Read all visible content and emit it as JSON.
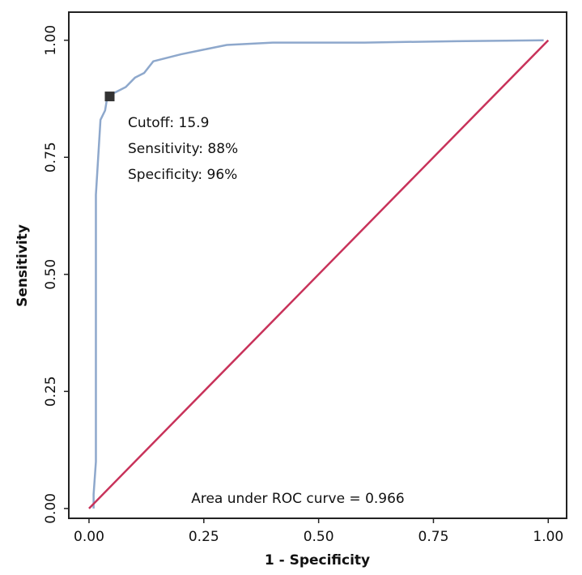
{
  "chart_data": {
    "type": "line",
    "xlabel": "1 - Specificity",
    "ylabel": "Sensitivity",
    "xlim": [
      -0.044,
      1.04
    ],
    "ylim": [
      -0.021,
      1.06
    ],
    "xticks": [
      {
        "value": 0,
        "label": "0.00"
      },
      {
        "value": 0.25,
        "label": "0.25"
      },
      {
        "value": 0.5,
        "label": "0.50"
      },
      {
        "value": 0.75,
        "label": "0.75"
      },
      {
        "value": 1,
        "label": "1.00"
      }
    ],
    "yticks": [
      {
        "value": 0,
        "label": "0.00"
      },
      {
        "value": 0.25,
        "label": "0.25"
      },
      {
        "value": 0.5,
        "label": "0.50"
      },
      {
        "value": 0.75,
        "label": "0.75"
      },
      {
        "value": 1,
        "label": "1.00"
      }
    ],
    "series": [
      {
        "color": "#8ea8cc",
        "x": [
          0.01,
          0.01,
          0.015,
          0.015,
          0.015,
          0.02,
          0.025,
          0.035,
          0.04,
          0.06,
          0.08,
          0.1,
          0.12,
          0.14,
          0.16,
          0.2,
          0.25,
          0.3,
          0.4,
          0.6,
          0.8,
          0.99
        ],
        "values": [
          0,
          0.03,
          0.1,
          0.5,
          0.67,
          0.75,
          0.83,
          0.85,
          0.88,
          0.89,
          0.9,
          0.92,
          0.93,
          0.955,
          0.96,
          0.97,
          0.98,
          0.99,
          0.995,
          0.995,
          0.998,
          1.0
        ]
      },
      {
        "color": "#c8325a",
        "x": [
          0,
          1
        ],
        "values": [
          0,
          1
        ]
      }
    ],
    "cutoff_point": {
      "x": 0.045,
      "y": 0.88,
      "color": "#333333"
    },
    "annotations": [
      "Cutoff: 15.9",
      "Sensitivity: 88%",
      "Specificity: 96%"
    ],
    "auc_label": "Area under ROC curve = 0.966"
  }
}
